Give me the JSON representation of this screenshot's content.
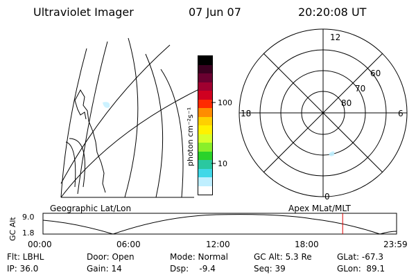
{
  "header": {
    "instrument": "Ultraviolet Imager",
    "date": "07 Jun 07",
    "time": "20:20:08 UT"
  },
  "geo_panel": {
    "label": "Geographic Lat/Lon"
  },
  "polar_panel": {
    "label": "Apex  MLat/MLT",
    "mlt_labels": {
      "top": "12",
      "left": "18",
      "right": "6",
      "bottom": "0"
    },
    "lat_labels": [
      "60",
      "70",
      "80"
    ]
  },
  "colorbar": {
    "unit_label": "photon cm⁻²s⁻¹",
    "ticks": [
      "100",
      "10"
    ],
    "colors": [
      "#000000",
      "#3a0020",
      "#6a0030",
      "#a00030",
      "#d00020",
      "#ff2a00",
      "#ff8c00",
      "#ffd000",
      "#fff200",
      "#d8ff2a",
      "#8aef2a",
      "#2ad22a",
      "#2ac8a0",
      "#40d8e8",
      "#bfefff",
      "#ffffff"
    ]
  },
  "gc_alt": {
    "ylabel": "GC Alt",
    "y_ticks": [
      "9.0",
      "1.8"
    ],
    "x_ticks": [
      "00:00",
      "06:00",
      "12:00",
      "18:00",
      "23:59"
    ],
    "current_marker_hours": 20.34
  },
  "status": {
    "row1": [
      {
        "label": "Flt: LBHL"
      },
      {
        "label": "Door: Open"
      },
      {
        "label": "Mode: Normal"
      },
      {
        "label": "GC Alt: 5.3 Re"
      },
      {
        "label": "GLat: -67.3"
      }
    ],
    "row2": [
      {
        "label": "IP: 36.0"
      },
      {
        "label": "Gain: 14"
      },
      {
        "label": "Dsp:    -9.4"
      },
      {
        "label": "Seq: 39"
      },
      {
        "label": "GLon:  89.1"
      }
    ]
  }
}
